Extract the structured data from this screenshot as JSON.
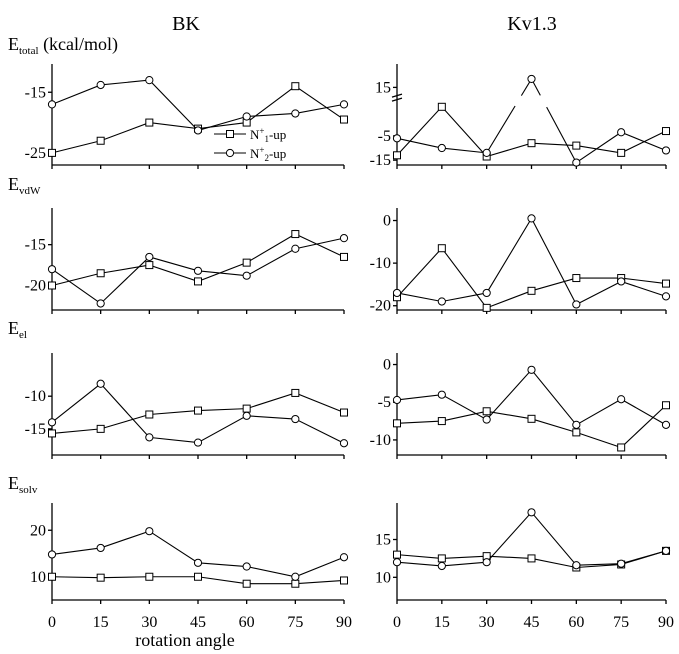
{
  "columns": [
    "BK",
    "Kv1.3"
  ],
  "x_axis_label": "rotation angle",
  "x_ticks": [
    "0",
    "15",
    "30",
    "45",
    "60",
    "75",
    "90"
  ],
  "legend": {
    "series": [
      "N+1-up",
      "N+2-up"
    ]
  },
  "rows": [
    {
      "main": "E",
      "sub": "total",
      "suffix": " (kcal/mol)"
    },
    {
      "main": "E",
      "sub": "vdW",
      "suffix": ""
    },
    {
      "main": "E",
      "sub": "el",
      "suffix": ""
    },
    {
      "main": "E",
      "sub": "solv",
      "suffix": ""
    }
  ],
  "chart_data": [
    {
      "type": "line",
      "panel": "BK E_total",
      "x": [
        0,
        15,
        30,
        45,
        60,
        75,
        90
      ],
      "ylim": [
        -27,
        -11
      ],
      "yticks": [
        -15,
        -25
      ],
      "series": [
        {
          "name": "N+1-up",
          "marker": "square",
          "values": [
            -25,
            -23,
            -20,
            -21,
            -20,
            -14,
            -19.5
          ]
        },
        {
          "name": "N+2-up",
          "marker": "circle",
          "values": [
            -17,
            -13.8,
            -13,
            -21.3,
            -19,
            -18.5,
            -17
          ]
        }
      ]
    },
    {
      "type": "line",
      "panel": "Kv1.3 E_total",
      "x": [
        0,
        15,
        30,
        45,
        60,
        75,
        90
      ],
      "ylim": [
        -17,
        23
      ],
      "yticks": [
        15,
        -5,
        -15
      ],
      "axis_break": true,
      "series": [
        {
          "name": "N+1-up",
          "marker": "square",
          "values": [
            -13,
            7,
            -13.5,
            -8,
            -9,
            -12,
            -3
          ]
        },
        {
          "name": "N+2-up",
          "marker": "circle",
          "values": [
            -6,
            -10,
            -12,
            18.5,
            -16,
            -3.5,
            -11
          ]
        }
      ]
    },
    {
      "type": "line",
      "panel": "BK E_vdW",
      "x": [
        0,
        15,
        30,
        45,
        60,
        75,
        90
      ],
      "ylim": [
        -23,
        -11
      ],
      "yticks": [
        -15,
        -20
      ],
      "series": [
        {
          "name": "N+1-up",
          "marker": "square",
          "values": [
            -20,
            -18.5,
            -17.5,
            -19.5,
            -17.2,
            -13.7,
            -16.5
          ]
        },
        {
          "name": "N+2-up",
          "marker": "circle",
          "values": [
            -18,
            -22.2,
            -16.5,
            -18.2,
            -18.8,
            -15.5,
            -14.2
          ]
        }
      ]
    },
    {
      "type": "line",
      "panel": "Kv1.3 E_vdW",
      "x": [
        0,
        15,
        30,
        45,
        60,
        75,
        90
      ],
      "ylim": [
        -21,
        2
      ],
      "yticks": [
        0,
        -10,
        -20
      ],
      "series": [
        {
          "name": "N+1-up",
          "marker": "square",
          "values": [
            -18,
            -6.5,
            -20.5,
            -16.5,
            -13.5,
            -13.5,
            -14.8
          ]
        },
        {
          "name": "N+2-up",
          "marker": "circle",
          "values": [
            -17,
            -19,
            -17,
            0.5,
            -19.7,
            -14.3,
            -17.8
          ]
        }
      ]
    },
    {
      "type": "line",
      "panel": "BK E_el",
      "x": [
        0,
        15,
        30,
        45,
        60,
        75,
        90
      ],
      "ylim": [
        -19,
        -4
      ],
      "yticks": [
        -10,
        -15
      ],
      "series": [
        {
          "name": "N+1-up",
          "marker": "square",
          "values": [
            -15.7,
            -15,
            -12.8,
            -12.2,
            -11.9,
            -9.5,
            -12.5
          ]
        },
        {
          "name": "N+2-up",
          "marker": "circle",
          "values": [
            -14,
            -8.1,
            -16.3,
            -17.1,
            -13,
            -13.5,
            -17.2
          ]
        }
      ]
    },
    {
      "type": "line",
      "panel": "Kv1.3 E_el",
      "x": [
        0,
        15,
        30,
        45,
        60,
        75,
        90
      ],
      "ylim": [
        -12,
        1
      ],
      "yticks": [
        0,
        -5,
        -10
      ],
      "series": [
        {
          "name": "N+1-up",
          "marker": "square",
          "values": [
            -7.8,
            -7.5,
            -6.2,
            -7.2,
            -9,
            -11,
            -5.4
          ]
        },
        {
          "name": "N+2-up",
          "marker": "circle",
          "values": [
            -4.7,
            -4,
            -7.3,
            -0.7,
            -8,
            -4.6,
            -8
          ]
        }
      ]
    },
    {
      "type": "line",
      "panel": "BK E_solv",
      "x": [
        0,
        15,
        30,
        45,
        60,
        75,
        90
      ],
      "ylim": [
        5,
        25
      ],
      "yticks": [
        20,
        10
      ],
      "series": [
        {
          "name": "N+1-up",
          "marker": "square",
          "values": [
            10,
            9.8,
            10,
            10,
            8.5,
            8.5,
            9.2
          ]
        },
        {
          "name": "N+2-up",
          "marker": "circle",
          "values": [
            14.8,
            16.2,
            19.8,
            13,
            12.2,
            10,
            14.2
          ]
        }
      ]
    },
    {
      "type": "line",
      "panel": "Kv1.3 E_solv",
      "x": [
        0,
        15,
        30,
        45,
        60,
        75,
        90
      ],
      "ylim": [
        7,
        19.3
      ],
      "yticks": [
        15,
        10
      ],
      "series": [
        {
          "name": "N+1-up",
          "marker": "square",
          "values": [
            13,
            12.5,
            12.8,
            12.5,
            11.3,
            11.7,
            13.5
          ]
        },
        {
          "name": "N+2-up",
          "marker": "circle",
          "values": [
            12,
            11.5,
            12,
            18.6,
            11.6,
            11.8,
            13.5
          ]
        }
      ]
    }
  ]
}
